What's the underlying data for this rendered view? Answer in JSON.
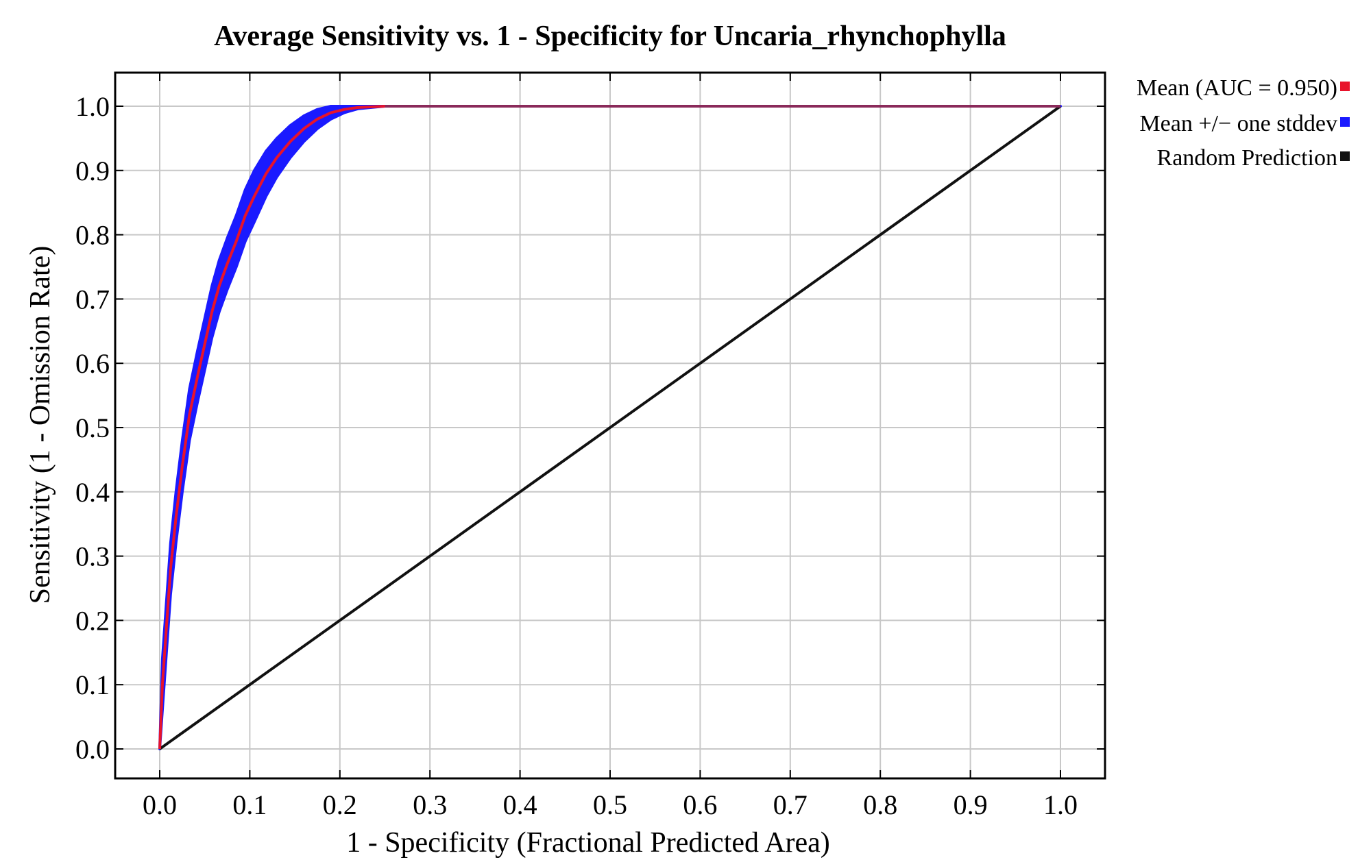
{
  "chart_data": {
    "type": "line",
    "title": "Average Sensitivity vs. 1 - Specificity for Uncaria_rhynchophylla",
    "xlabel": "1 - Specificity (Fractional Predicted Area)",
    "ylabel": "Sensitivity (1 - Omission Rate)",
    "xlim": [
      0,
      1
    ],
    "ylim": [
      0,
      1
    ],
    "x_ticks": [
      "0.0",
      "0.1",
      "0.2",
      "0.3",
      "0.4",
      "0.5",
      "0.6",
      "0.7",
      "0.8",
      "0.9",
      "1.0"
    ],
    "y_ticks": [
      "0.0",
      "0.1",
      "0.2",
      "0.3",
      "0.4",
      "0.5",
      "0.6",
      "0.7",
      "0.8",
      "0.9",
      "1.0"
    ],
    "grid": true,
    "legend_position": "right-top",
    "series": [
      {
        "name": "Mean (AUC = 0.950)",
        "color": "#e8132b",
        "x": [
          0,
          0.003,
          0.008,
          0.012,
          0.018,
          0.025,
          0.033,
          0.042,
          0.05,
          0.058,
          0.066,
          0.075,
          0.085,
          0.095,
          0.105,
          0.118,
          0.13,
          0.145,
          0.16,
          0.175,
          0.19,
          0.205,
          0.22,
          0.25,
          1.0
        ],
        "y": [
          0,
          0.1,
          0.2,
          0.28,
          0.36,
          0.44,
          0.52,
          0.58,
          0.63,
          0.68,
          0.72,
          0.755,
          0.79,
          0.83,
          0.86,
          0.895,
          0.92,
          0.945,
          0.965,
          0.98,
          0.99,
          0.995,
          0.998,
          1.0,
          1.0
        ]
      },
      {
        "name": "Mean +/− one stddev",
        "color": "#1a1aff",
        "x": [
          0,
          0.003,
          0.008,
          0.012,
          0.018,
          0.025,
          0.033,
          0.042,
          0.05,
          0.058,
          0.066,
          0.075,
          0.085,
          0.095,
          0.105,
          0.118,
          0.13,
          0.145,
          0.16,
          0.175,
          0.19,
          0.205,
          0.22,
          0.25,
          1.0
        ],
        "y_upper": [
          0,
          0.14,
          0.24,
          0.32,
          0.4,
          0.48,
          0.56,
          0.62,
          0.67,
          0.72,
          0.76,
          0.795,
          0.83,
          0.87,
          0.9,
          0.93,
          0.95,
          0.97,
          0.985,
          0.995,
          1.0,
          1.0,
          1.0,
          1.0,
          1.0
        ],
        "y_lower": [
          0,
          0.06,
          0.16,
          0.24,
          0.32,
          0.4,
          0.48,
          0.54,
          0.59,
          0.64,
          0.68,
          0.715,
          0.75,
          0.79,
          0.82,
          0.86,
          0.89,
          0.92,
          0.945,
          0.965,
          0.98,
          0.99,
          0.996,
          1.0,
          1.0
        ]
      },
      {
        "name": "Random Prediction",
        "color": "#111111",
        "x": [
          0,
          1
        ],
        "y": [
          0,
          1
        ]
      }
    ]
  }
}
